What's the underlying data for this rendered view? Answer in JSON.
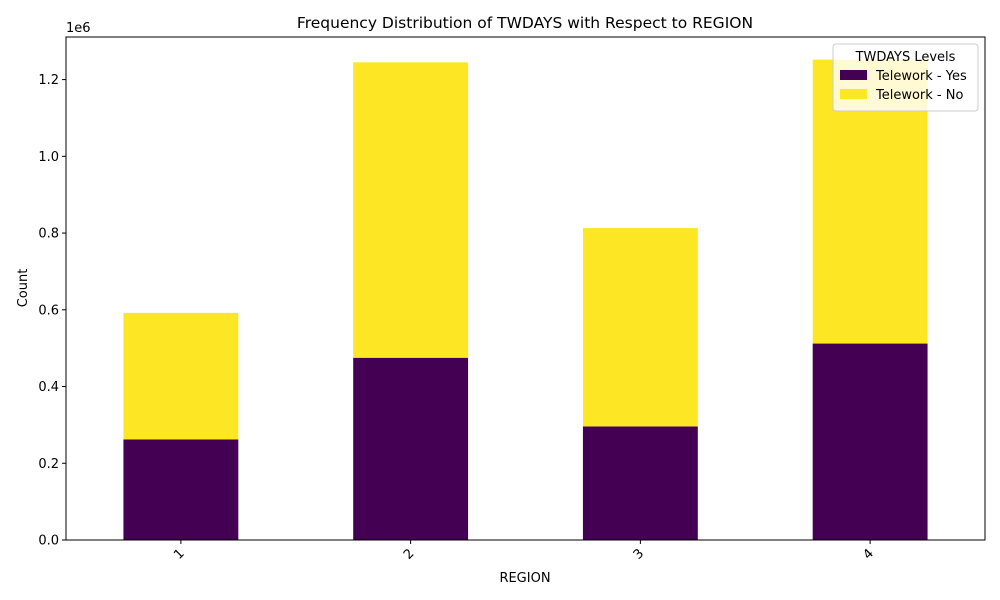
{
  "chart_data": {
    "type": "bar",
    "stacked": true,
    "title": "Frequency Distribution of TWDAYS with Respect to REGION",
    "xlabel": "REGION",
    "ylabel": "Count",
    "y_offset_label": "1e6",
    "categories": [
      "1",
      "2",
      "3",
      "4"
    ],
    "series": [
      {
        "name": "Telework - Yes",
        "color": "#440154",
        "values": [
          262000,
          475000,
          296000,
          512000
        ]
      },
      {
        "name": "Telework - No",
        "color": "#fde725",
        "values": [
          330000,
          770000,
          517000,
          740000
        ]
      }
    ],
    "ylim": [
      0,
      1311000
    ],
    "y_ticks": [
      {
        "value": 0,
        "label": "0.0"
      },
      {
        "value": 200000,
        "label": "0.2"
      },
      {
        "value": 400000,
        "label": "0.4"
      },
      {
        "value": 600000,
        "label": "0.6"
      },
      {
        "value": 800000,
        "label": "0.8"
      },
      {
        "value": 1000000,
        "label": "1.0"
      },
      {
        "value": 1200000,
        "label": "1.2"
      }
    ],
    "legend": {
      "title": "TWDAYS Levels",
      "placement": "top-right"
    },
    "grid": false
  }
}
